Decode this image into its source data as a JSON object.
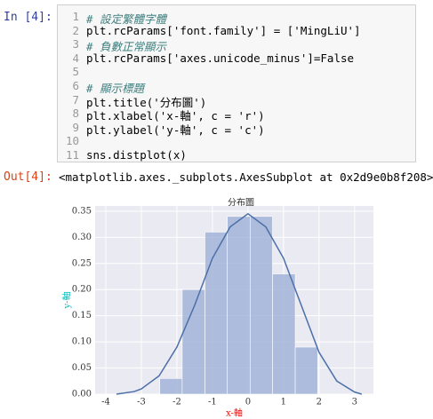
{
  "input_prompt": "In [4]:",
  "code_lines": [
    {
      "number": 1,
      "text": "# 設定繁體字體"
    },
    {
      "number": 2,
      "text": "plt.rcParams['font.family'] = ['MingLiU']"
    },
    {
      "number": 3,
      "text": "# 負數正常顯示"
    },
    {
      "number": 4,
      "text": "plt.rcParams['axes.unicode_minus']=False"
    },
    {
      "number": 5,
      "text": ""
    },
    {
      "number": 6,
      "text": "# 顯示標題"
    },
    {
      "number": 7,
      "text": "plt.title('分布圖')"
    },
    {
      "number": 8,
      "text": "plt.xlabel('x-軸', c = 'r')"
    },
    {
      "number": 9,
      "text": "plt.ylabel('y-軸', c = 'c')"
    },
    {
      "number": 10,
      "text": ""
    },
    {
      "number": 11,
      "text": "sns.distplot(x)"
    }
  ],
  "output_prompt": "Out[4]:",
  "output_text": "<matplotlib.axes._subplots.AxesSubplot at 0x2d9e0b8f208>",
  "chart_data": {
    "type": "histogram",
    "title": "分布圖",
    "x_label": "x-軸",
    "y_label": "y-軸",
    "x_label_color": "#ff0000",
    "y_label_color": "#00bfbf",
    "bins": [
      -2.48,
      -1.85,
      -1.21,
      -0.58,
      0.06,
      0.69,
      1.33,
      1.96
    ],
    "values": [
      0.03,
      0.2,
      0.31,
      0.34,
      0.34,
      0.23,
      0.09
    ],
    "color": "#9eb0d6",
    "kde": {
      "color": "#4c6fa8",
      "x": [
        -3.7,
        -3.2,
        -3,
        -2.5,
        -2,
        -1.5,
        -1,
        -0.5,
        0,
        0.5,
        1,
        1.5,
        2,
        2.5,
        3,
        3.2
      ],
      "values": [
        0,
        0.005,
        0.01,
        0.035,
        0.09,
        0.17,
        0.26,
        0.32,
        0.345,
        0.32,
        0.26,
        0.17,
        0.08,
        0.025,
        0.004,
        0
      ]
    },
    "xlim": [
      -4.3,
      3.53
    ],
    "ylim": [
      0,
      0.36
    ],
    "xticks": [
      -4,
      -3,
      -2,
      -1,
      0,
      1,
      2,
      3
    ],
    "yticks": [
      {
        "value": 0,
        "label": "0.00"
      },
      0.05,
      {
        "value": 0.1,
        "label": "0.10"
      },
      0.15,
      {
        "value": 0.2,
        "label": "0.20"
      },
      0.25,
      {
        "value": 0.3,
        "label": "0.30"
      },
      0.35
    ],
    "grid": true,
    "background": "#eaeaf2"
  }
}
